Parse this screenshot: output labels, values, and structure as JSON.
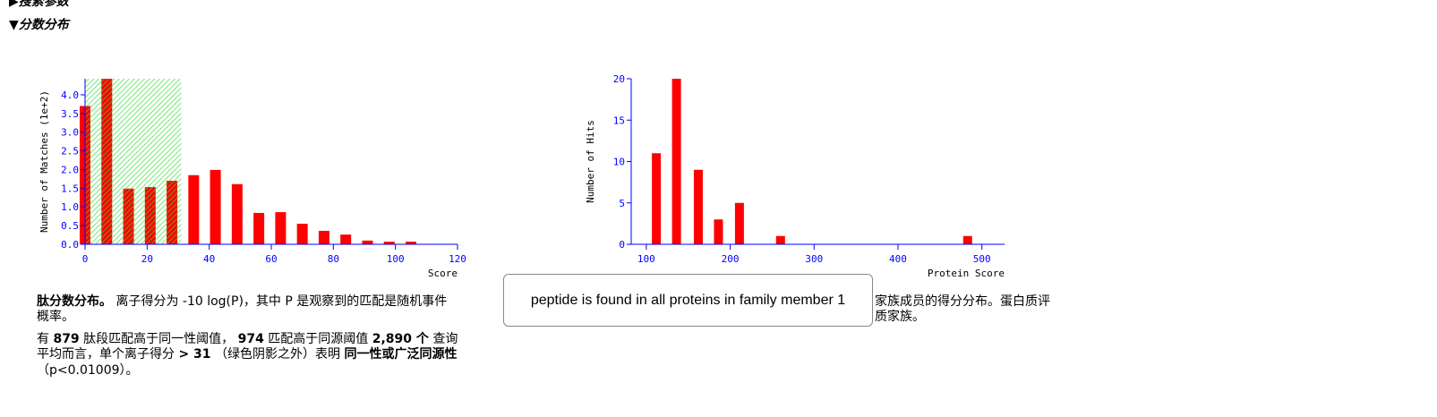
{
  "header": {
    "collapsed_section": "搜索参数",
    "section_title": "分数分布"
  },
  "chart_data": [
    {
      "type": "bar",
      "ylabel": "Number of Matches (1e+2)",
      "xlabel": "Score",
      "x": [
        0,
        7,
        14,
        21,
        28,
        35,
        42,
        49,
        56,
        63,
        70,
        77,
        84,
        91,
        98,
        105
      ],
      "values": [
        3.7,
        4.43,
        1.49,
        1.53,
        1.7,
        1.85,
        1.99,
        1.61,
        0.84,
        0.86,
        0.55,
        0.36,
        0.26,
        0.1,
        0.07,
        0.07
      ],
      "color": "#ff0000",
      "xlim": [
        0,
        120
      ],
      "xticks": [
        0,
        20,
        40,
        60,
        80,
        100,
        120
      ],
      "ylim": [
        0,
        4.43
      ],
      "yticks": [
        {
          "value": 0,
          "label": "0.0"
        },
        {
          "value": 0.5,
          "label": "0.5"
        },
        {
          "value": 1,
          "label": "1.0"
        },
        {
          "value": 1.5,
          "label": "1.5"
        },
        {
          "value": 2,
          "label": "2.0"
        },
        {
          "value": 2.5,
          "label": "2.5"
        },
        {
          "value": 3,
          "label": "3.0"
        },
        {
          "value": 3.5,
          "label": "3.5"
        },
        {
          "value": 4,
          "label": "4.0"
        }
      ],
      "shade_below": 31,
      "shade_color": "#33dd33"
    },
    {
      "type": "bar",
      "ylabel": "Number of Hits",
      "xlabel": "Protein Score",
      "x": [
        112,
        136,
        162,
        186,
        211,
        260,
        483
      ],
      "values": [
        11,
        20,
        9,
        3,
        5,
        1,
        1
      ],
      "color": "#ff0000",
      "xlim": [
        82,
        527
      ],
      "xticks": [
        100,
        200,
        300,
        400,
        500
      ],
      "ylim": [
        0,
        20
      ],
      "yticks": [
        0,
        5,
        10,
        15,
        20
      ]
    }
  ],
  "caption": {
    "line1_bold": "肽分数分布。",
    "line1": "离子得分为 -10 log(P)，其中 P 是观察到的匹配是随机事件",
    "line1_right": "家族成员的得分分布。蛋白质评",
    "line2": "概率。",
    "line2_right": "质家族。"
  },
  "summary": {
    "a": "有",
    "b": "879",
    "c": "肽段匹配高于同一性阈值，",
    "d": "974",
    "e": "匹配高于同源阈值",
    "f": "2,890 个",
    "g": "查询",
    "h": "平均而言，单个离子得分",
    "i": "> 31",
    "j": "（绿色阴影之外）表明",
    "k": "同一性或广泛同源性",
    "l": "（p<0.01009）。"
  },
  "tooltip": "peptide is found in all proteins in family member 1"
}
